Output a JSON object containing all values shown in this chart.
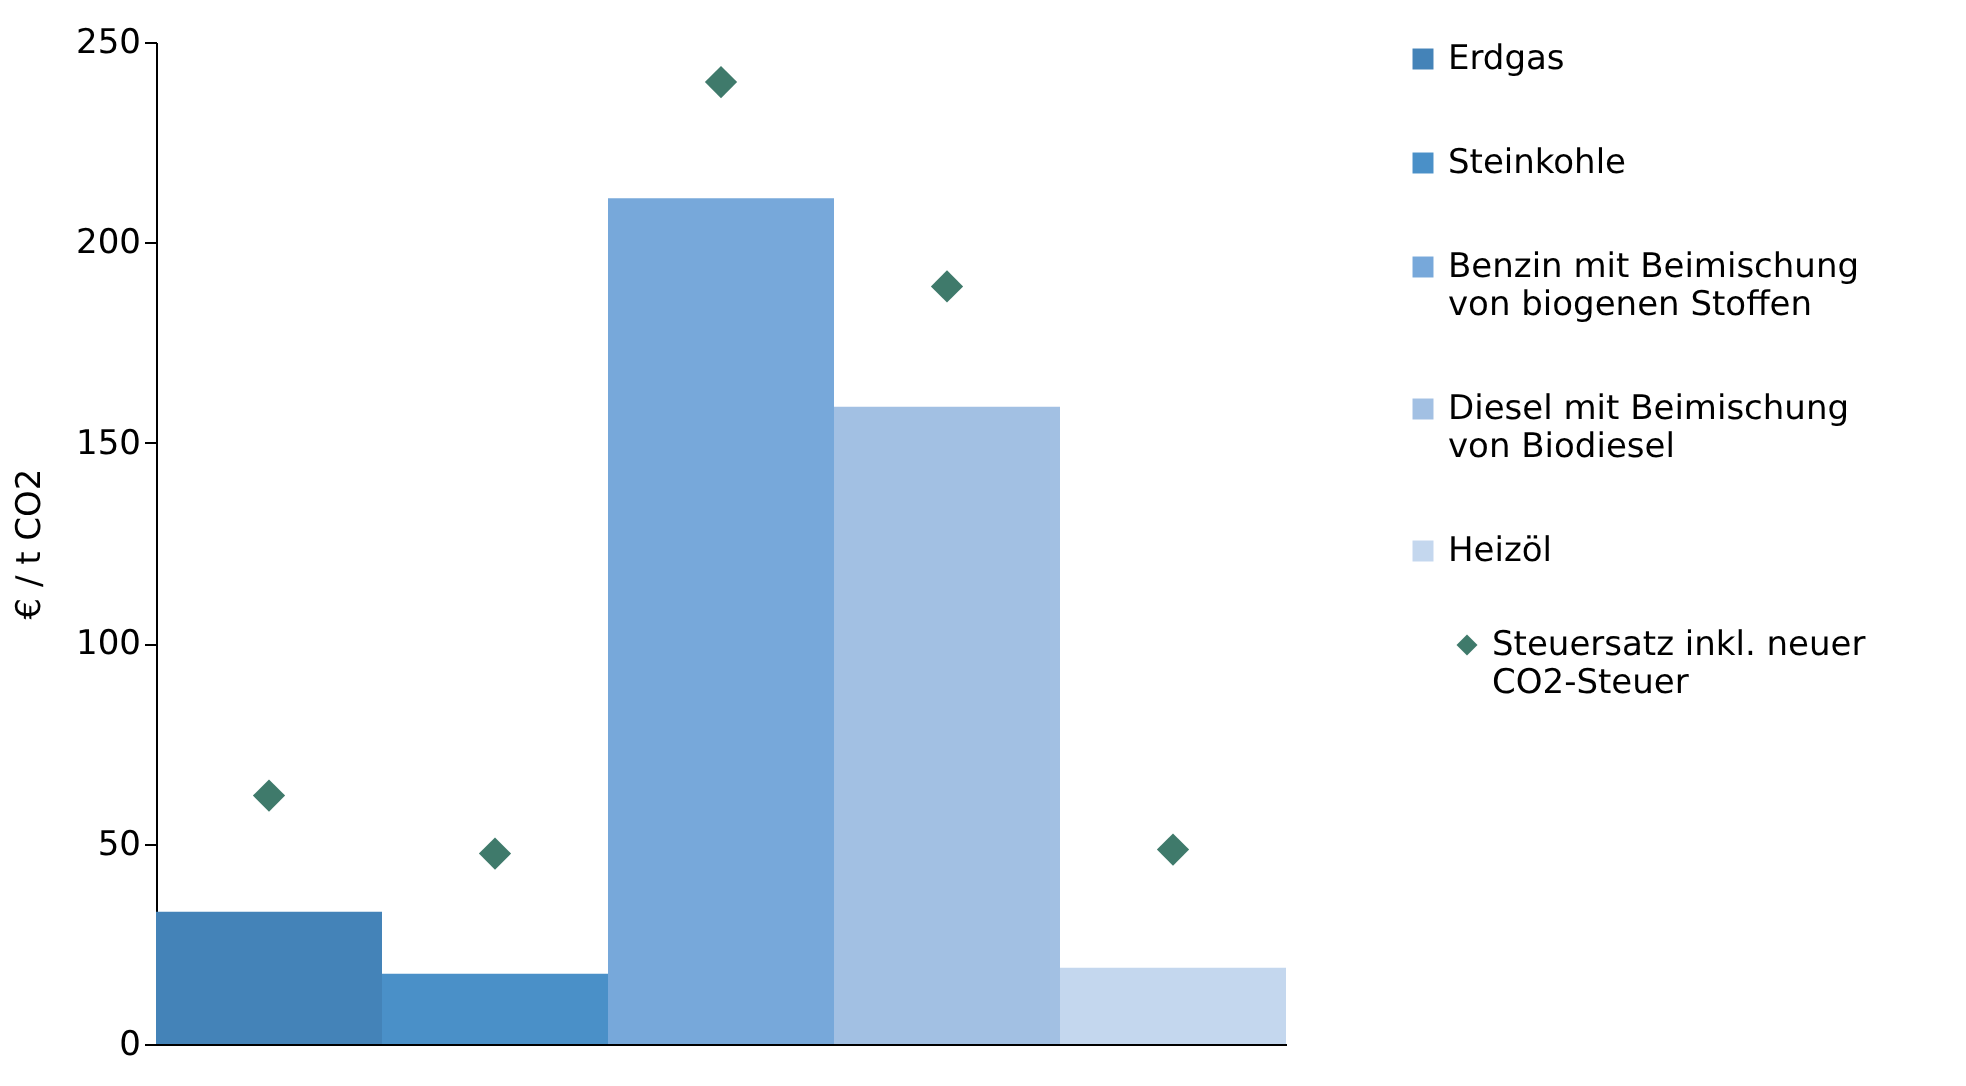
{
  "chart_data": {
    "type": "bar",
    "ylabel": "€ / t CO2",
    "categories": [
      null,
      null,
      null,
      null,
      null
    ],
    "series": [
      {
        "name": "Erdgas",
        "color": "#4483b8",
        "values": [
          33,
          null,
          null,
          null,
          null
        ]
      },
      {
        "name": "Steinkohle",
        "color": "#4a90c8",
        "values": [
          null,
          17.5,
          null,
          null,
          null
        ]
      },
      {
        "name": "Benzin mit Beimischung von biogenen Stoffen",
        "color": "#77a8da",
        "values": [
          null,
          null,
          211,
          null,
          null
        ]
      },
      {
        "name": "Diesel mit Beimischung von Biodiesel",
        "color": "#a2c0e3",
        "values": [
          null,
          null,
          null,
          159,
          null
        ]
      },
      {
        "name": "Heizöl",
        "color": "#c4d7ee",
        "values": [
          null,
          null,
          null,
          null,
          19
        ]
      },
      {
        "name": "Steuersatz inkl. neuer CO2-Steuer",
        "type": "scatter",
        "marker": "diamond",
        "color": "#3f7a6b",
        "values": [
          62,
          47.5,
          240,
          189,
          48.5
        ]
      }
    ],
    "ylim": [
      0,
      250
    ],
    "yticks": [
      0,
      50,
      100,
      150,
      200,
      250
    ],
    "grid": false,
    "legend": "right"
  }
}
